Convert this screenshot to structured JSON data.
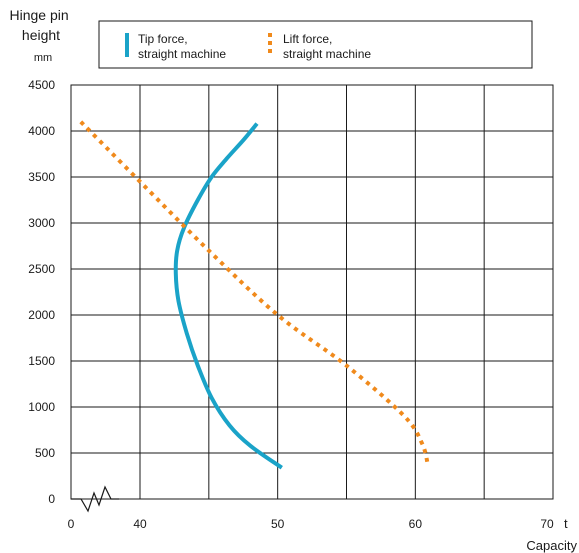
{
  "chart_data": {
    "type": "line",
    "ylabel_lines": [
      "Hinge pin",
      "height"
    ],
    "yunit": "mm",
    "xlabel": "Capacity",
    "xunit": "t",
    "x_break": true,
    "x_ticks": [
      {
        "value": 0,
        "label": "0"
      },
      {
        "value": 40,
        "label": "40"
      },
      {
        "value": 50,
        "label": "50"
      },
      {
        "value": 60,
        "label": "60"
      },
      {
        "value": 70,
        "label": "70"
      }
    ],
    "y_ticks": [
      {
        "value": 0,
        "label": "0"
      },
      {
        "value": 500,
        "label": "500"
      },
      {
        "value": 1000,
        "label": "1000"
      },
      {
        "value": 1500,
        "label": "1500"
      },
      {
        "value": 2000,
        "label": "2000"
      },
      {
        "value": 2500,
        "label": "2500"
      },
      {
        "value": 3000,
        "label": "3000"
      },
      {
        "value": 3500,
        "label": "3500"
      },
      {
        "value": 4000,
        "label": "4000"
      },
      {
        "value": 4500,
        "label": "4500"
      }
    ],
    "xlim": [
      35,
      70
    ],
    "ylim": [
      0,
      4500
    ],
    "grid": true,
    "legend_position": "top",
    "series": [
      {
        "name_lines": [
          "Tip force,",
          "straight machine"
        ],
        "color": "#1aa3c8",
        "style": "solid",
        "points": [
          [
            48.5,
            4080
          ],
          [
            47.5,
            3900
          ],
          [
            46.3,
            3700
          ],
          [
            45.2,
            3500
          ],
          [
            44.2,
            3250
          ],
          [
            43.2,
            2950
          ],
          [
            42.7,
            2700
          ],
          [
            42.6,
            2450
          ],
          [
            42.8,
            2150
          ],
          [
            43.4,
            1800
          ],
          [
            44.2,
            1450
          ],
          [
            45.2,
            1100
          ],
          [
            46.5,
            800
          ],
          [
            48.0,
            580
          ],
          [
            50.3,
            340
          ]
        ]
      },
      {
        "name_lines": [
          "Lift force,",
          "straight machine"
        ],
        "color": "#f08a1c",
        "style": "dotted",
        "points": [
          [
            35.7,
            4100
          ],
          [
            40.0,
            3450
          ],
          [
            45.0,
            2700
          ],
          [
            50.0,
            2000
          ],
          [
            55.0,
            1450
          ],
          [
            59.2,
            900
          ],
          [
            60.5,
            600
          ],
          [
            60.9,
            380
          ]
        ]
      }
    ]
  }
}
